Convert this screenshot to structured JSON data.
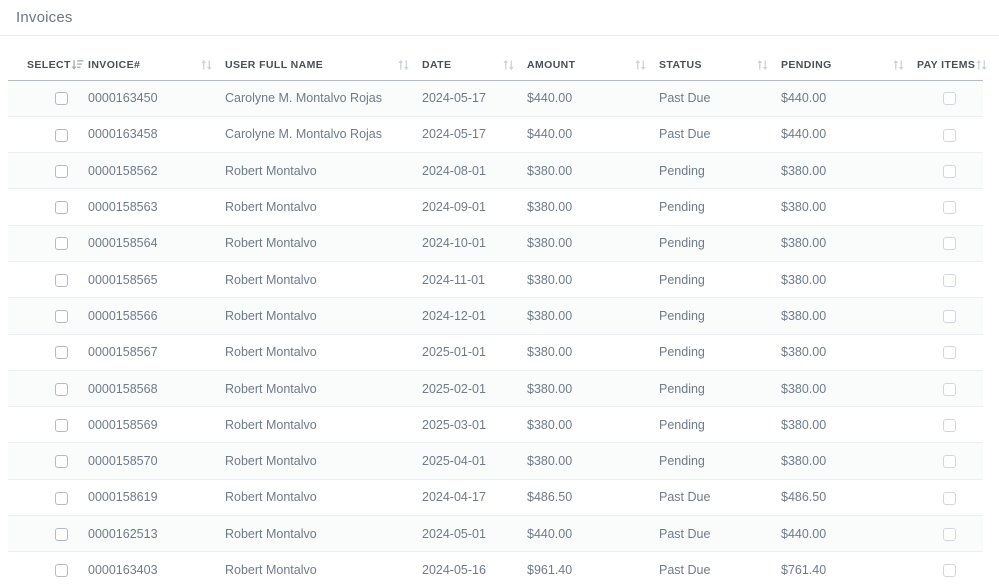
{
  "page": {
    "title": "Invoices"
  },
  "colors": {
    "body_text": "#6f7b8a",
    "header_text": "#49505a",
    "row_separator": "#eceef1",
    "header_border": "#b6bbc2",
    "sort_icon": "#ced3da",
    "sort_icon_active": "#a3adbd"
  },
  "table": {
    "columns": [
      {
        "label": "SELECT",
        "icon": "sort-amount-icon",
        "sorted": true
      },
      {
        "label": "INVOICE#",
        "icon": "sort-both-icon",
        "sorted": false
      },
      {
        "label": "USER FULL NAME",
        "icon": "sort-both-icon",
        "sorted": false
      },
      {
        "label": "DATE",
        "icon": "sort-both-icon",
        "sorted": false
      },
      {
        "label": "AMOUNT",
        "icon": "sort-both-icon",
        "sorted": false
      },
      {
        "label": "STATUS",
        "icon": "sort-both-icon",
        "sorted": false
      },
      {
        "label": "PENDING",
        "icon": "sort-both-icon",
        "sorted": false
      },
      {
        "label": "PAY ITEMS",
        "icon": "sort-both-icon",
        "sorted": false
      }
    ],
    "rows": [
      {
        "invoice": "0000163450",
        "user": "Carolyne M. Montalvo Rojas",
        "date": "2024-05-17",
        "amount": "$440.00",
        "status": "Past Due",
        "pending": "$440.00",
        "selected": false,
        "pay_selected": false
      },
      {
        "invoice": "0000163458",
        "user": "Carolyne M. Montalvo Rojas",
        "date": "2024-05-17",
        "amount": "$440.00",
        "status": "Past Due",
        "pending": "$440.00",
        "selected": false,
        "pay_selected": false
      },
      {
        "invoice": "0000158562",
        "user": "Robert Montalvo",
        "date": "2024-08-01",
        "amount": "$380.00",
        "status": "Pending",
        "pending": "$380.00",
        "selected": false,
        "pay_selected": false
      },
      {
        "invoice": "0000158563",
        "user": "Robert Montalvo",
        "date": "2024-09-01",
        "amount": "$380.00",
        "status": "Pending",
        "pending": "$380.00",
        "selected": false,
        "pay_selected": false
      },
      {
        "invoice": "0000158564",
        "user": "Robert Montalvo",
        "date": "2024-10-01",
        "amount": "$380.00",
        "status": "Pending",
        "pending": "$380.00",
        "selected": false,
        "pay_selected": false
      },
      {
        "invoice": "0000158565",
        "user": "Robert Montalvo",
        "date": "2024-11-01",
        "amount": "$380.00",
        "status": "Pending",
        "pending": "$380.00",
        "selected": false,
        "pay_selected": false
      },
      {
        "invoice": "0000158566",
        "user": "Robert Montalvo",
        "date": "2024-12-01",
        "amount": "$380.00",
        "status": "Pending",
        "pending": "$380.00",
        "selected": false,
        "pay_selected": false
      },
      {
        "invoice": "0000158567",
        "user": "Robert Montalvo",
        "date": "2025-01-01",
        "amount": "$380.00",
        "status": "Pending",
        "pending": "$380.00",
        "selected": false,
        "pay_selected": false
      },
      {
        "invoice": "0000158568",
        "user": "Robert Montalvo",
        "date": "2025-02-01",
        "amount": "$380.00",
        "status": "Pending",
        "pending": "$380.00",
        "selected": false,
        "pay_selected": false
      },
      {
        "invoice": "0000158569",
        "user": "Robert Montalvo",
        "date": "2025-03-01",
        "amount": "$380.00",
        "status": "Pending",
        "pending": "$380.00",
        "selected": false,
        "pay_selected": false
      },
      {
        "invoice": "0000158570",
        "user": "Robert Montalvo",
        "date": "2025-04-01",
        "amount": "$380.00",
        "status": "Pending",
        "pending": "$380.00",
        "selected": false,
        "pay_selected": false
      },
      {
        "invoice": "0000158619",
        "user": "Robert Montalvo",
        "date": "2024-04-17",
        "amount": "$486.50",
        "status": "Past Due",
        "pending": "$486.50",
        "selected": false,
        "pay_selected": false
      },
      {
        "invoice": "0000162513",
        "user": "Robert Montalvo",
        "date": "2024-05-01",
        "amount": "$440.00",
        "status": "Past Due",
        "pending": "$440.00",
        "selected": false,
        "pay_selected": false
      },
      {
        "invoice": "0000163403",
        "user": "Robert Montalvo",
        "date": "2024-05-16",
        "amount": "$961.40",
        "status": "Past Due",
        "pending": "$761.40",
        "selected": false,
        "pay_selected": false
      }
    ]
  }
}
